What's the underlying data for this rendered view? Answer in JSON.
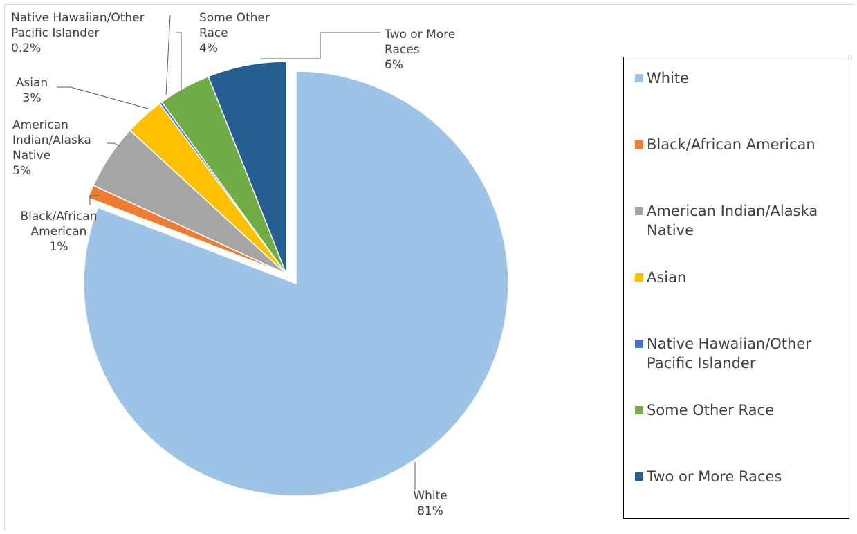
{
  "chart_data": {
    "type": "pie",
    "title": "",
    "slices": [
      {
        "label": "White",
        "value": 81,
        "data_label": "81%",
        "color": "#9dc3e6"
      },
      {
        "label": "Black/African American",
        "value": 1,
        "data_label": "1%",
        "color": "#ed7d31"
      },
      {
        "label": "American Indian/Alaska Native",
        "value": 5,
        "data_label": "5%",
        "color": "#a5a5a5"
      },
      {
        "label": "Asian",
        "value": 3,
        "data_label": "3%",
        "color": "#ffc000"
      },
      {
        "label": "Native Hawaiian/Other Pacific Islander",
        "value": 0.2,
        "data_label": "0.2%",
        "color": "#4472c4"
      },
      {
        "label": "Some Other Race",
        "value": 4,
        "data_label": "4%",
        "color": "#70ad47"
      },
      {
        "label": "Two or More Races",
        "value": 6,
        "data_label": "6%",
        "color": "#255e91"
      }
    ],
    "data_label_lines": [
      [
        "White",
        "81%"
      ],
      [
        "Black/African",
        "American",
        "1%"
      ],
      [
        "American",
        "Indian/Alaska",
        "Native",
        "5%"
      ],
      [
        "Asian",
        "3%"
      ],
      [
        "Native Hawaiian/Other",
        "Pacific Islander",
        "0.2%"
      ],
      [
        "Some Other",
        "Race",
        "4%"
      ],
      [
        "Two or More",
        "Races",
        "6%"
      ]
    ],
    "exploded_slice": "White",
    "legend": {
      "position": "right",
      "items": [
        {
          "lines": [
            "White"
          ],
          "color": "#9dc3e6"
        },
        {
          "lines": [
            "Black/African American"
          ],
          "color": "#ed7d31"
        },
        {
          "lines": [
            "American Indian/Alaska",
            "Native"
          ],
          "color": "#a5a5a5"
        },
        {
          "lines": [
            "Asian"
          ],
          "color": "#ffc000"
        },
        {
          "lines": [
            "Native Hawaiian/Other",
            "Pacific Islander"
          ],
          "color": "#4472c4"
        },
        {
          "lines": [
            "Some Other Race"
          ],
          "color": "#70ad47"
        },
        {
          "lines": [
            "Two or More Races"
          ],
          "color": "#255e91"
        }
      ]
    }
  }
}
